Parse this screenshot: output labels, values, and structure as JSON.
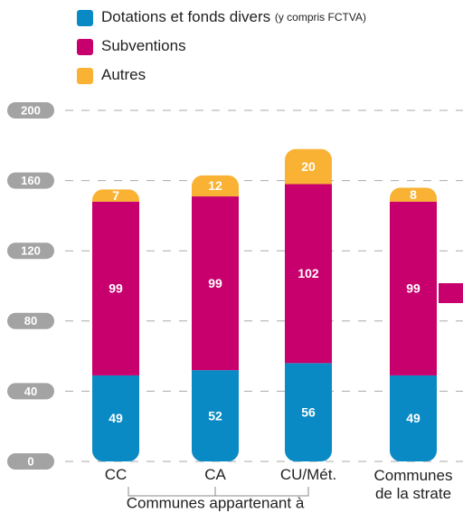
{
  "chart_data": {
    "type": "stacked_bar",
    "categories": [
      "CC",
      "CA",
      "CU/Mét.",
      "Communes de la strate"
    ],
    "group_label": "Communes appartenant à",
    "series": [
      {
        "name": "Dotations et fonds divers",
        "legend_note": "(y compris FCTVA)",
        "color": "#0a8ac4",
        "values": [
          49,
          52,
          56,
          49
        ]
      },
      {
        "name": "Subventions",
        "color": "#c8006e",
        "values": [
          99,
          99,
          102,
          99
        ]
      },
      {
        "name": "Autres",
        "color": "#f9b233",
        "values": [
          7,
          12,
          20,
          8
        ]
      }
    ],
    "ylim": [
      0,
      200
    ],
    "yticks": [
      0,
      40,
      80,
      120,
      160,
      200
    ],
    "grid": true
  }
}
